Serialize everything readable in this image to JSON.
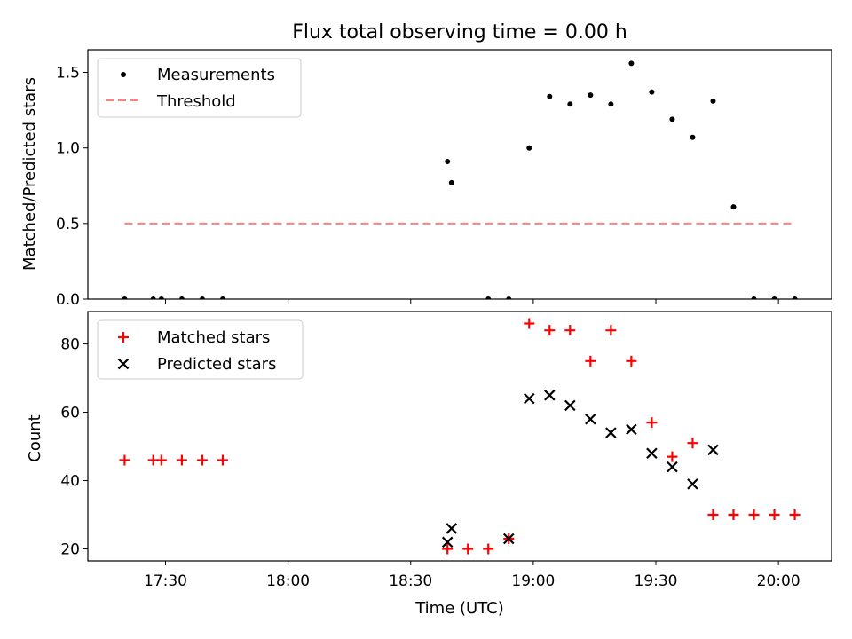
{
  "chart_data": [
    {
      "type": "scatter",
      "title": "Flux total observing time = 0.00 h",
      "ylabel": "Matched/Predicted stars",
      "xlabel": "",
      "ylim": [
        0,
        1.65
      ],
      "yticks": [
        "0.0",
        "0.5",
        "1.0",
        "1.5"
      ],
      "legend_position": "upper left",
      "series": [
        {
          "name": "Measurements",
          "kind": "points",
          "color": "#000000",
          "x": [
            "17:20",
            "17:27",
            "17:29",
            "17:34",
            "17:39",
            "17:44",
            "18:39",
            "18:40",
            "18:49",
            "18:54",
            "18:59",
            "19:04",
            "19:09",
            "19:14",
            "19:19",
            "19:24",
            "19:29",
            "19:34",
            "19:39",
            "19:44",
            "19:49",
            "19:54",
            "19:59",
            "20:04"
          ],
          "y": [
            0,
            0,
            0,
            0,
            0,
            0,
            0.91,
            0.77,
            0,
            0,
            1.0,
            1.34,
            1.29,
            1.35,
            1.29,
            1.56,
            1.37,
            1.19,
            1.07,
            1.31,
            0.61,
            0,
            0,
            0
          ]
        },
        {
          "name": "Threshold",
          "kind": "dashed-line",
          "color": "#ff7f7f",
          "x": [
            "17:20",
            "20:04"
          ],
          "y": [
            0.5,
            0.5
          ]
        }
      ]
    },
    {
      "type": "scatter",
      "xlabel": "Time (UTC)",
      "ylabel": "Count",
      "ylim": [
        16.5,
        89.5
      ],
      "yticks": [
        "20",
        "40",
        "60",
        "80"
      ],
      "xticks": [
        "17:30",
        "18:00",
        "18:30",
        "19:00",
        "19:30",
        "20:00"
      ],
      "legend_position": "upper left",
      "series": [
        {
          "name": "Matched stars",
          "marker": "plus",
          "color": "#ff0000",
          "x": [
            "17:20",
            "17:27",
            "17:29",
            "17:34",
            "17:39",
            "17:44",
            "18:39",
            "18:44",
            "18:49",
            "18:54",
            "18:59",
            "19:04",
            "19:09",
            "19:14",
            "19:19",
            "19:24",
            "19:29",
            "19:34",
            "19:39",
            "19:44",
            "19:49",
            "19:54",
            "19:59",
            "20:04"
          ],
          "y": [
            46,
            46,
            46,
            46,
            46,
            46,
            20,
            20,
            20,
            23,
            86,
            84,
            84,
            75,
            84,
            75,
            57,
            47,
            51,
            30,
            30,
            30,
            30,
            30
          ]
        },
        {
          "name": "Predicted stars",
          "marker": "x",
          "color": "#000000",
          "x": [
            "18:39",
            "18:40",
            "18:54",
            "18:59",
            "19:04",
            "19:09",
            "19:14",
            "19:19",
            "19:24",
            "19:29",
            "19:34",
            "19:39",
            "19:44"
          ],
          "y": [
            22,
            26,
            23,
            64,
            65,
            62,
            58,
            54,
            55,
            48,
            44,
            39,
            49
          ]
        }
      ]
    }
  ]
}
